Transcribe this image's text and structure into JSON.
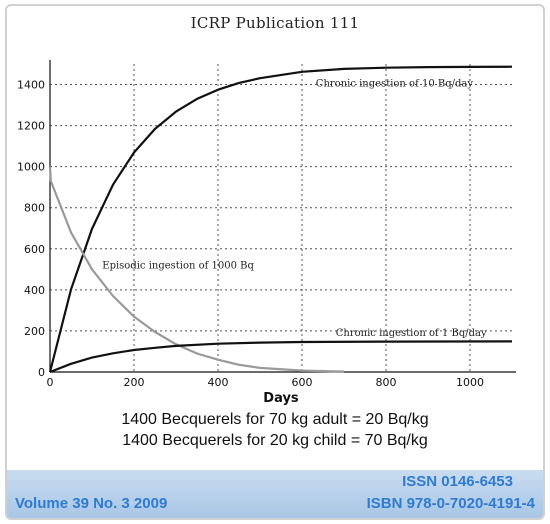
{
  "header": {
    "title": "ICRP Publication 111"
  },
  "notes": {
    "line1": "1400 Becquerels for 70 kg adult = 20 Bq/kg",
    "line2": "1400 Becquerels for 20 kg child = 70 Bq/kg"
  },
  "footer": {
    "volume": "Volume 39 No. 3 2009",
    "issn": "ISSN 0146-6453",
    "isbn": "ISBN 978-0-7020-4191-4"
  },
  "chart_data": {
    "type": "line",
    "title": "",
    "xlabel": "Days",
    "ylabel": "",
    "xlim": [
      0,
      1100
    ],
    "ylim": [
      0,
      1500
    ],
    "x_ticks": [
      0,
      200,
      400,
      600,
      800,
      1000
    ],
    "y_ticks": [
      0,
      200,
      400,
      600,
      800,
      1000,
      1200,
      1400
    ],
    "grid": true,
    "series": [
      {
        "name": "Chronic ingestion of 10 Bq/day",
        "color": "#111111",
        "x": [
          0,
          50,
          100,
          150,
          200,
          250,
          300,
          350,
          400,
          450,
          500,
          600,
          700,
          800,
          900,
          1000,
          1100
        ],
        "y": [
          0,
          402,
          697,
          912,
          1069,
          1184,
          1268,
          1330,
          1375,
          1408,
          1431,
          1462,
          1476,
          1482,
          1485,
          1486,
          1487
        ]
      },
      {
        "name": "Episodic ingestion of 1000 Bq",
        "color": "#999999",
        "x": [
          0,
          2,
          50,
          100,
          150,
          200,
          250,
          300,
          350,
          400,
          450,
          500,
          600,
          700
        ],
        "y": [
          1000,
          930,
          680,
          500,
          370,
          270,
          195,
          135,
          90,
          60,
          35,
          20,
          7,
          2
        ]
      },
      {
        "name": "Chronic ingestion of 1 Bq/day",
        "color": "#111111",
        "x": [
          0,
          50,
          100,
          150,
          200,
          250,
          300,
          400,
          500,
          600,
          800,
          1100
        ],
        "y": [
          0,
          40,
          70,
          91,
          107,
          118,
          127,
          138,
          143,
          146,
          148,
          149
        ]
      }
    ],
    "annotations": [
      {
        "text": "Chronic ingestion of 10 Bq/day",
        "x": 820,
        "y": 1390
      },
      {
        "text": "Episodic ingestion of 1000 Bq",
        "x": 305,
        "y": 505
      },
      {
        "text": "Chronic ingestion of 1 Bq/day",
        "x": 860,
        "y": 175
      }
    ]
  }
}
